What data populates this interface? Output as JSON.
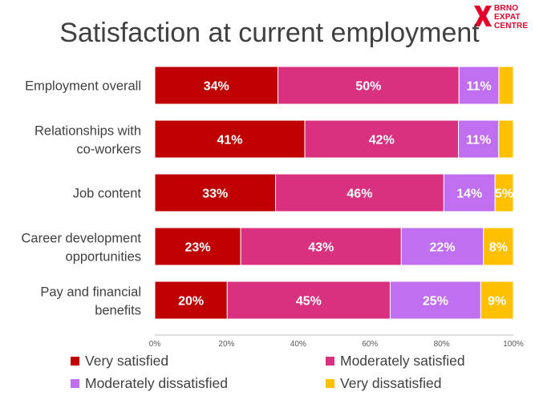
{
  "logo": {
    "lines": [
      "BRNO",
      "EXPAT",
      "CENTRE"
    ],
    "color": "#e3002b"
  },
  "chart_data": {
    "type": "bar",
    "orientation": "horizontal",
    "stacked": true,
    "title": "Satisfaction at current employment",
    "categories": [
      "Employment overall",
      "Relationships with co-workers",
      "Job content",
      "Career development opportunities",
      "Pay and financial benefits"
    ],
    "category_lines": [
      [
        "Employment overall"
      ],
      [
        "Relationships with",
        "co-workers"
      ],
      [
        "Job content"
      ],
      [
        "Career development",
        "opportunities"
      ],
      [
        "Pay and financial",
        "benefits"
      ]
    ],
    "series": [
      {
        "name": "Very satisfied",
        "color": "#c00000",
        "values": [
          34,
          41,
          33,
          23,
          20
        ],
        "labels": [
          "34%",
          "41%",
          "33%",
          "23%",
          "20%"
        ]
      },
      {
        "name": "Moderately satisfied",
        "color": "#d9307f",
        "values": [
          50,
          42,
          46,
          43,
          45
        ],
        "labels": [
          "50%",
          "42%",
          "46%",
          "43%",
          "45%"
        ]
      },
      {
        "name": "Moderately dissatisfied",
        "color": "#bf6ff0",
        "values": [
          11,
          11,
          14,
          22,
          25
        ],
        "labels": [
          "11%",
          "11%",
          "14%",
          "22%",
          "25%"
        ]
      },
      {
        "name": "Very dissatisfied",
        "color": "#ffc000",
        "values": [
          4,
          4,
          5,
          8,
          9
        ],
        "labels": [
          "",
          "",
          "5%",
          "8%",
          "9%"
        ]
      }
    ],
    "xlim": [
      0,
      100
    ],
    "xticks": [
      0,
      20,
      40,
      60,
      80,
      100
    ],
    "xtick_labels": [
      "0%",
      "20%",
      "40%",
      "60%",
      "80%",
      "100%"
    ],
    "grid": false,
    "legend_position": "bottom"
  }
}
